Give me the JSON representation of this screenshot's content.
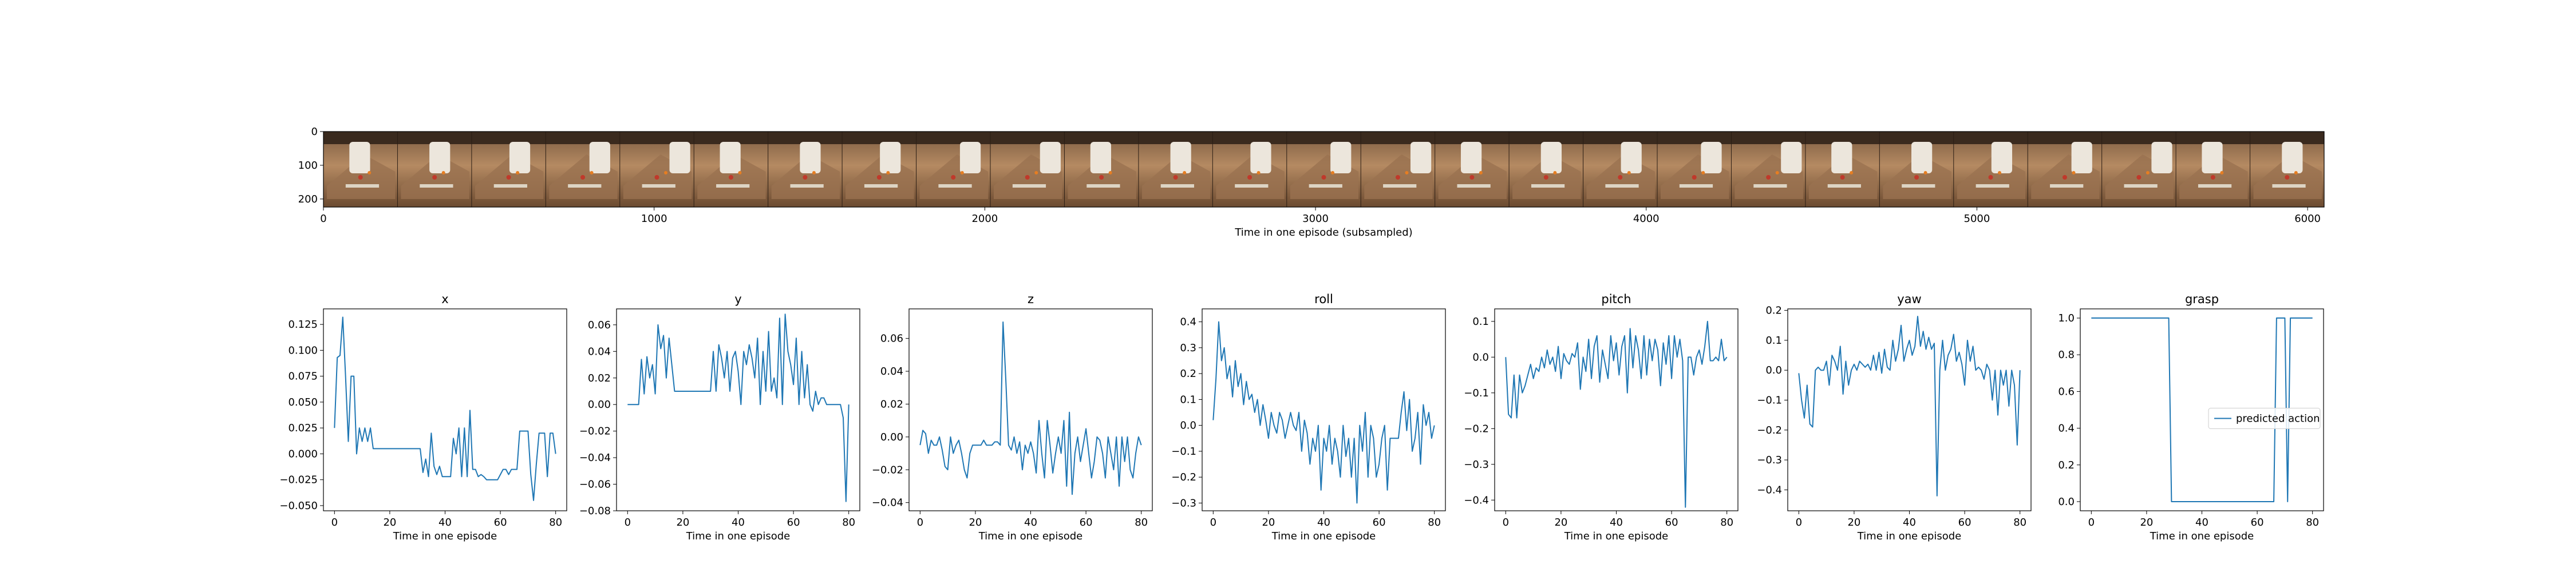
{
  "filmstrip": {
    "xlabel": "Time in one episode (subsampled)",
    "x_ticks": [
      0,
      1000,
      2000,
      3000,
      4000,
      5000,
      6000
    ],
    "y_ticks": [
      0,
      100,
      200
    ],
    "xlim": [
      0,
      6050
    ],
    "ylim": [
      224,
      0
    ],
    "frame_count": 27
  },
  "chart_data": [
    {
      "type": "line",
      "title": "x",
      "xlabel": "Time in one episode",
      "ylabel": "",
      "xlim": [
        -4,
        84
      ],
      "ylim": [
        -0.055,
        0.14
      ],
      "x_ticks": [
        0,
        20,
        40,
        60,
        80
      ],
      "y_ticks": [
        -0.05,
        -0.025,
        0.0,
        0.025,
        0.05,
        0.075,
        0.1,
        0.125
      ],
      "y_tick_decimals": 3,
      "series": [
        {
          "color": "#1f77b4",
          "values": [
            0.025,
            0.093,
            0.095,
            0.132,
            0.075,
            0.012,
            0.075,
            0.075,
            0.0,
            0.025,
            0.012,
            0.025,
            0.012,
            0.025,
            0.005,
            0.005,
            0.005,
            0.005,
            0.005,
            0.005,
            0.005,
            0.005,
            0.005,
            0.005,
            0.005,
            0.005,
            0.005,
            0.005,
            0.005,
            0.005,
            0.005,
            0.005,
            -0.018,
            -0.005,
            -0.022,
            0.02,
            -0.012,
            -0.02,
            -0.012,
            -0.022,
            -0.022,
            -0.022,
            -0.022,
            0.015,
            0.0,
            0.025,
            -0.022,
            0.025,
            -0.022,
            0.042,
            -0.015,
            -0.015,
            -0.022,
            -0.02,
            -0.022,
            -0.025,
            -0.025,
            -0.025,
            -0.025,
            -0.025,
            -0.02,
            -0.015,
            -0.015,
            -0.02,
            -0.015,
            -0.015,
            -0.015,
            0.022,
            0.022,
            0.022,
            0.022,
            -0.02,
            -0.045,
            -0.01,
            0.02,
            0.02,
            0.02,
            -0.022,
            0.02,
            0.02,
            0.0
          ]
        }
      ]
    },
    {
      "type": "line",
      "title": "y",
      "xlabel": "Time in one episode",
      "ylabel": "",
      "xlim": [
        -4,
        84
      ],
      "ylim": [
        -0.08,
        0.072
      ],
      "x_ticks": [
        0,
        20,
        40,
        60,
        80
      ],
      "y_ticks": [
        -0.08,
        -0.06,
        -0.04,
        -0.02,
        0.0,
        0.02,
        0.04,
        0.06
      ],
      "y_tick_decimals": 2,
      "series": [
        {
          "color": "#1f77b4",
          "values": [
            0.0,
            0.0,
            0.0,
            0.0,
            0.0,
            0.034,
            0.008,
            0.036,
            0.02,
            0.03,
            0.008,
            0.06,
            0.042,
            0.052,
            0.02,
            0.05,
            0.03,
            0.01,
            0.01,
            0.01,
            0.01,
            0.01,
            0.01,
            0.01,
            0.01,
            0.01,
            0.01,
            0.01,
            0.01,
            0.01,
            0.01,
            0.04,
            0.01,
            0.045,
            0.035,
            0.02,
            0.04,
            0.01,
            0.035,
            0.04,
            0.025,
            0.0,
            0.04,
            0.03,
            0.045,
            0.035,
            0.02,
            0.05,
            0.0,
            0.04,
            0.01,
            0.055,
            0.01,
            0.02,
            0.005,
            0.065,
            0.0,
            0.068,
            0.04,
            0.03,
            0.015,
            0.05,
            0.0,
            0.04,
            0.005,
            0.03,
            0.0,
            -0.005,
            0.01,
            0.0,
            0.005,
            0.005,
            0.0,
            0.0,
            0.0,
            0.0,
            0.0,
            0.0,
            -0.01,
            -0.073,
            0.0
          ]
        }
      ]
    },
    {
      "type": "line",
      "title": "z",
      "xlabel": "Time in one episode",
      "ylabel": "",
      "xlim": [
        -4,
        84
      ],
      "ylim": [
        -0.045,
        0.078
      ],
      "x_ticks": [
        0,
        20,
        40,
        60,
        80
      ],
      "y_ticks": [
        -0.04,
        -0.02,
        0.0,
        0.02,
        0.04,
        0.06
      ],
      "y_tick_decimals": 2,
      "series": [
        {
          "color": "#1f77b4",
          "values": [
            -0.005,
            0.004,
            0.002,
            -0.01,
            -0.002,
            -0.005,
            -0.005,
            0.0,
            -0.008,
            -0.018,
            -0.02,
            0.0,
            -0.01,
            -0.005,
            -0.002,
            -0.01,
            -0.02,
            -0.025,
            -0.01,
            -0.005,
            -0.005,
            -0.005,
            -0.005,
            -0.002,
            -0.005,
            -0.005,
            -0.005,
            -0.003,
            -0.003,
            -0.005,
            0.07,
            0.035,
            -0.005,
            -0.008,
            0.0,
            -0.01,
            -0.003,
            -0.02,
            -0.005,
            -0.01,
            -0.003,
            -0.01,
            -0.022,
            0.01,
            -0.01,
            -0.025,
            0.01,
            -0.005,
            -0.022,
            -0.01,
            0.0,
            -0.01,
            0.01,
            -0.03,
            0.015,
            -0.035,
            -0.01,
            0.0,
            -0.015,
            -0.005,
            0.005,
            -0.01,
            -0.025,
            -0.015,
            0.0,
            -0.002,
            -0.01,
            -0.025,
            0.0,
            -0.01,
            -0.02,
            0.0,
            -0.03,
            0.0,
            -0.015,
            0.0,
            -0.02,
            -0.025,
            -0.01,
            0.0,
            -0.005
          ]
        }
      ]
    },
    {
      "type": "line",
      "title": "roll",
      "xlabel": "Time in one episode",
      "ylabel": "",
      "xlim": [
        -4,
        84
      ],
      "ylim": [
        -0.33,
        0.45
      ],
      "x_ticks": [
        0,
        20,
        40,
        60,
        80
      ],
      "y_ticks": [
        -0.3,
        -0.2,
        -0.1,
        0.0,
        0.1,
        0.2,
        0.3,
        0.4
      ],
      "y_tick_decimals": 1,
      "series": [
        {
          "color": "#1f77b4",
          "values": [
            0.02,
            0.18,
            0.4,
            0.25,
            0.3,
            0.18,
            0.23,
            0.11,
            0.25,
            0.15,
            0.2,
            0.08,
            0.17,
            0.1,
            0.12,
            0.05,
            0.1,
            0.0,
            0.08,
            0.02,
            -0.05,
            0.05,
            0.0,
            -0.03,
            0.05,
            0.02,
            -0.05,
            0.0,
            0.05,
            0.0,
            -0.02,
            0.05,
            -0.1,
            0.02,
            -0.03,
            -0.15,
            -0.05,
            -0.1,
            0.0,
            -0.25,
            -0.05,
            -0.1,
            0.0,
            -0.15,
            -0.05,
            -0.1,
            -0.2,
            0.0,
            -0.12,
            -0.05,
            -0.2,
            -0.05,
            -0.3,
            0.0,
            -0.1,
            0.05,
            -0.2,
            0.0,
            -0.05,
            -0.2,
            -0.15,
            -0.05,
            0.0,
            -0.25,
            -0.05,
            -0.05,
            -0.05,
            -0.05,
            0.05,
            0.13,
            -0.02,
            0.1,
            -0.1,
            -0.05,
            0.05,
            -0.15,
            0.08,
            0.0,
            0.05,
            -0.05,
            0.0
          ]
        }
      ]
    },
    {
      "type": "line",
      "title": "pitch",
      "xlabel": "Time in one episode",
      "ylabel": "",
      "xlim": [
        -4,
        84
      ],
      "ylim": [
        -0.43,
        0.135
      ],
      "x_ticks": [
        0,
        20,
        40,
        60,
        80
      ],
      "y_ticks": [
        -0.4,
        -0.3,
        -0.2,
        -0.1,
        0.0,
        0.1
      ],
      "y_tick_decimals": 1,
      "series": [
        {
          "color": "#1f77b4",
          "values": [
            0.0,
            -0.16,
            -0.17,
            -0.05,
            -0.17,
            -0.05,
            -0.1,
            -0.08,
            -0.05,
            -0.02,
            -0.06,
            -0.03,
            -0.04,
            0.0,
            -0.03,
            0.02,
            -0.02,
            0.0,
            -0.04,
            0.03,
            -0.06,
            0.01,
            -0.01,
            -0.02,
            0.01,
            0.0,
            0.04,
            -0.09,
            0.0,
            -0.04,
            0.05,
            -0.06,
            0.03,
            0.06,
            -0.07,
            0.02,
            -0.02,
            -0.06,
            0.06,
            -0.01,
            0.04,
            -0.05,
            0.03,
            0.06,
            -0.1,
            0.08,
            -0.03,
            0.06,
            0.02,
            -0.06,
            0.06,
            -0.05,
            0.05,
            -0.01,
            0.05,
            0.02,
            -0.08,
            0.04,
            -0.02,
            0.06,
            -0.06,
            0.06,
            0.0,
            0.05,
            -0.01,
            -0.42,
            0.0,
            0.0,
            -0.05,
            0.0,
            0.02,
            -0.02,
            0.03,
            0.1,
            -0.01,
            -0.01,
            0.0,
            -0.01,
            0.05,
            -0.01,
            0.0
          ]
        }
      ]
    },
    {
      "type": "line",
      "title": "yaw",
      "xlabel": "Time in one episode",
      "ylabel": "",
      "xlim": [
        -4,
        84
      ],
      "ylim": [
        -0.47,
        0.205
      ],
      "x_ticks": [
        0,
        20,
        40,
        60,
        80
      ],
      "y_ticks": [
        -0.4,
        -0.3,
        -0.2,
        -0.1,
        0.0,
        0.1,
        0.2
      ],
      "y_tick_decimals": 1,
      "series": [
        {
          "color": "#1f77b4",
          "values": [
            -0.01,
            -0.1,
            -0.16,
            -0.05,
            -0.18,
            -0.19,
            0.0,
            0.01,
            0.0,
            0.0,
            0.03,
            -0.05,
            0.05,
            0.03,
            0.0,
            0.08,
            -0.08,
            0.03,
            -0.05,
            0.0,
            0.02,
            0.0,
            0.03,
            0.02,
            0.01,
            0.02,
            0.0,
            0.05,
            0.0,
            0.06,
            -0.01,
            0.07,
            0.01,
            0.0,
            0.1,
            0.03,
            0.07,
            0.15,
            0.03,
            0.07,
            0.1,
            0.05,
            0.08,
            0.18,
            0.08,
            0.13,
            0.07,
            0.11,
            0.07,
            0.09,
            -0.42,
            0.0,
            0.1,
            0.0,
            0.05,
            0.07,
            0.12,
            0.03,
            0.06,
            0.02,
            -0.05,
            0.1,
            0.03,
            0.08,
            0.0,
            0.01,
            0.0,
            -0.03,
            0.02,
            0.0,
            -0.1,
            0.0,
            -0.15,
            0.0,
            -0.05,
            0.0,
            -0.12,
            0.0,
            -0.05,
            -0.25,
            0.0
          ]
        }
      ]
    },
    {
      "type": "line",
      "title": "grasp",
      "xlabel": "Time in one episode",
      "ylabel": "",
      "xlim": [
        -4,
        84
      ],
      "ylim": [
        -0.05,
        1.05
      ],
      "x_ticks": [
        0,
        20,
        40,
        60,
        80
      ],
      "y_ticks": [
        0.0,
        0.2,
        0.4,
        0.6,
        0.8,
        1.0
      ],
      "y_tick_decimals": 1,
      "legend": "predicted action",
      "legend_loc": "center right",
      "series": [
        {
          "name": "predicted action",
          "color": "#1f77b4",
          "values": [
            1,
            1,
            1,
            1,
            1,
            1,
            1,
            1,
            1,
            1,
            1,
            1,
            1,
            1,
            1,
            1,
            1,
            1,
            1,
            1,
            1,
            1,
            1,
            1,
            1,
            1,
            1,
            1,
            1,
            0,
            0,
            0,
            0,
            0,
            0,
            0,
            0,
            0,
            0,
            0,
            0,
            0,
            0,
            0,
            0,
            0,
            0,
            0,
            0,
            0,
            0,
            0,
            0,
            0,
            0,
            0,
            0,
            0,
            0,
            0,
            0,
            0,
            0,
            0,
            0,
            0,
            0,
            1,
            1,
            1,
            1,
            0,
            1,
            1,
            1,
            1,
            1,
            1,
            1,
            1,
            1
          ]
        }
      ]
    }
  ]
}
